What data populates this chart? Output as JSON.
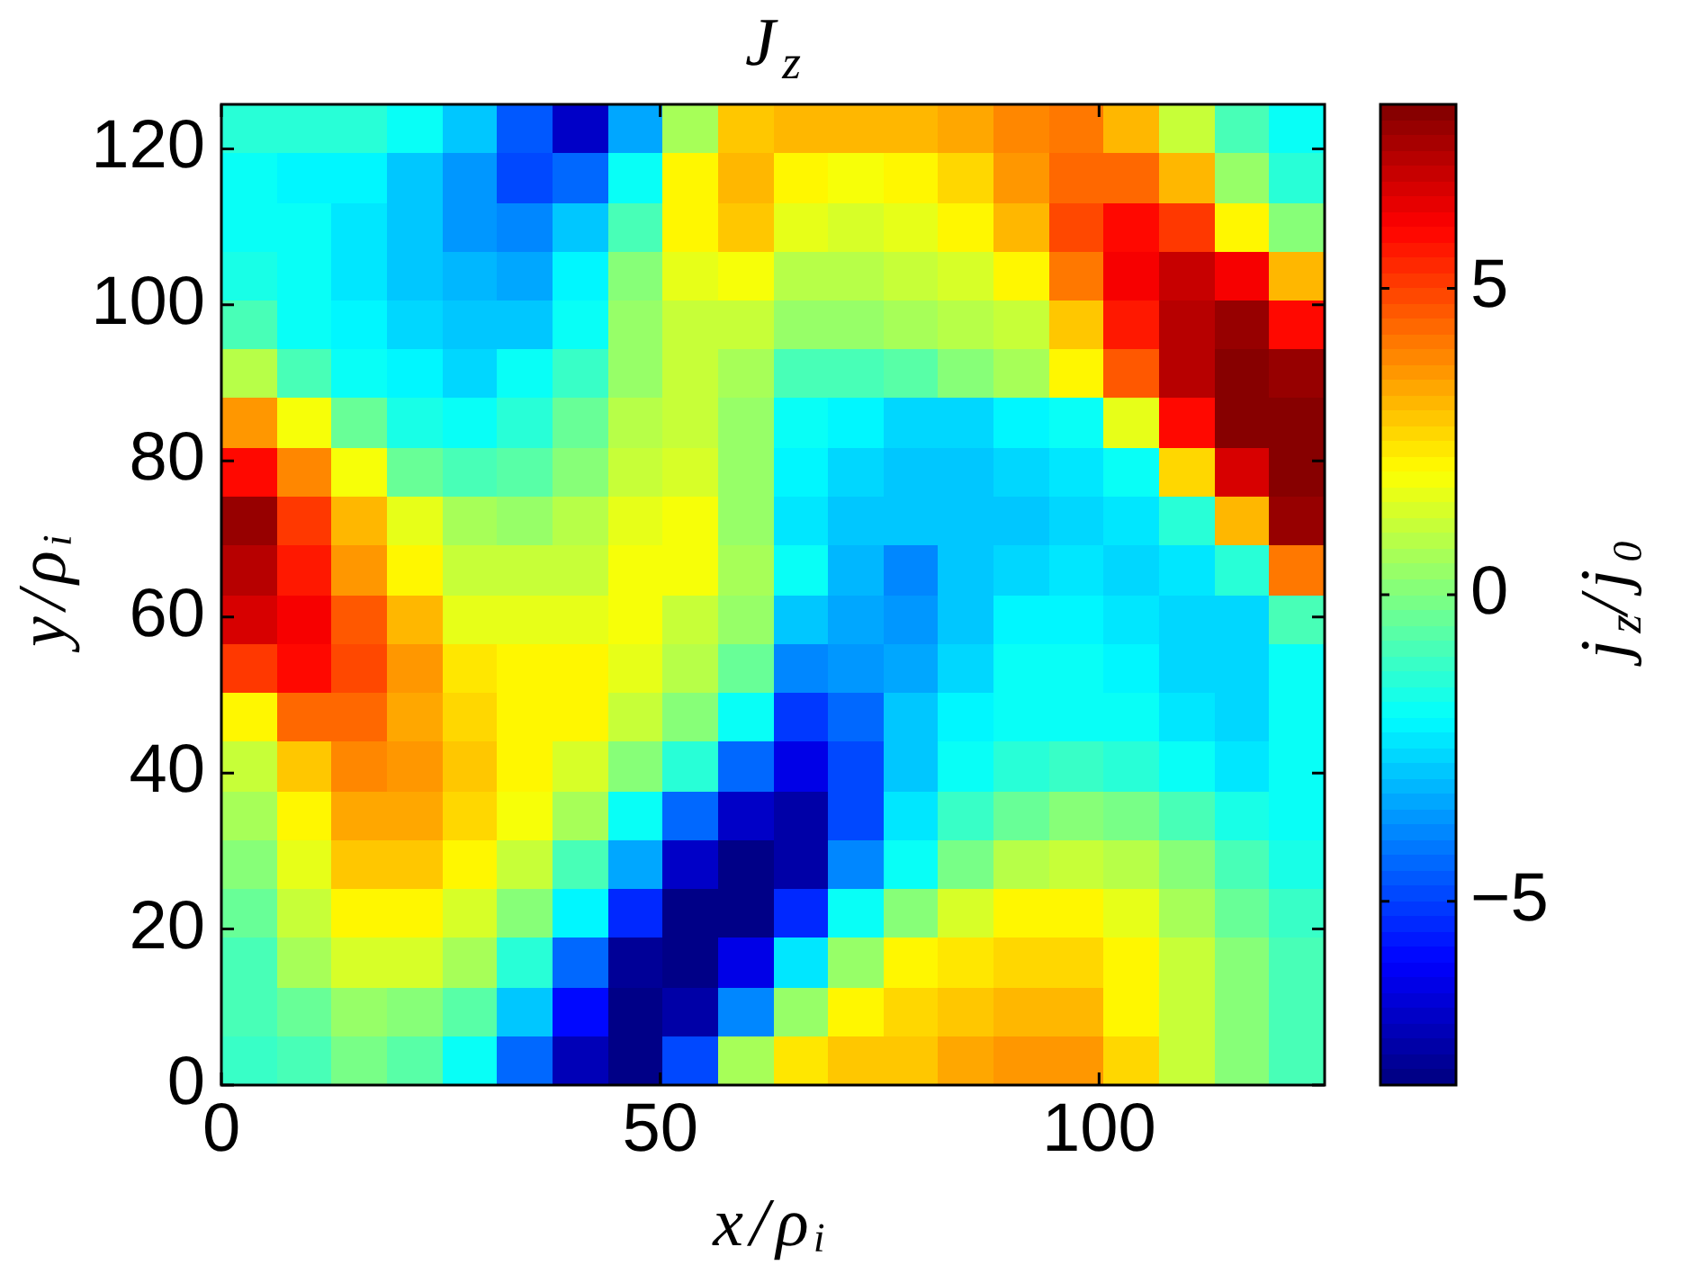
{
  "chart_data": {
    "type": "heatmap",
    "title": "J$_{z}$",
    "xlabel": "x/ρᵢ",
    "ylabel": "y/ρᵢ",
    "clabel": "j$_{z}$/j₀",
    "cells": [
      [
        -1.5,
        -1.4,
        -1.4,
        -2.0,
        -3.0,
        -4.6,
        -6.8,
        -3.5,
        0.5,
        2.8,
        3.0,
        3.0,
        3.0,
        3.3,
        3.8,
        4.0,
        3.0,
        1.0,
        -0.8,
        -1.8
      ],
      [
        -2.0,
        -2.1,
        -2.1,
        -2.8,
        -3.7,
        -4.8,
        -4.5,
        -2.0,
        2.0,
        3.0,
        2.0,
        1.8,
        2.0,
        2.6,
        3.5,
        4.3,
        4.3,
        3.0,
        0.3,
        -1.5
      ],
      [
        -1.8,
        -2.0,
        -2.3,
        -2.9,
        -3.6,
        -4.0,
        -3.0,
        -1.0,
        2.0,
        2.8,
        1.5,
        1.3,
        1.5,
        2.0,
        3.0,
        4.8,
        5.8,
        5.0,
        2.0,
        0.0
      ],
      [
        -1.7,
        -2.0,
        -2.3,
        -2.8,
        -3.2,
        -3.4,
        -2.2,
        0.0,
        1.7,
        1.8,
        0.8,
        0.8,
        1.0,
        1.3,
        2.2,
        4.0,
        6.0,
        6.8,
        6.0,
        3.2
      ],
      [
        -1.0,
        -1.8,
        -2.1,
        -2.6,
        -3.0,
        -2.8,
        -1.8,
        0.3,
        1.2,
        1.0,
        0.3,
        0.3,
        0.5,
        0.8,
        1.2,
        2.8,
        5.5,
        7.0,
        7.5,
        5.8
      ],
      [
        0.8,
        -1.0,
        -1.8,
        -2.2,
        -2.6,
        -2.0,
        -1.2,
        0.3,
        1.2,
        0.6,
        -1.0,
        -0.8,
        -0.6,
        0.0,
        0.5,
        2.0,
        4.5,
        7.2,
        7.9,
        7.5
      ],
      [
        3.5,
        1.8,
        -0.5,
        -1.6,
        -1.9,
        -1.3,
        -0.5,
        0.8,
        1.0,
        0.4,
        -2.0,
        -2.2,
        -2.6,
        -2.6,
        -2.2,
        -1.8,
        1.5,
        5.8,
        8.0,
        8.0
      ],
      [
        5.8,
        3.8,
        1.8,
        -0.3,
        -0.8,
        -0.6,
        0.0,
        1.0,
        1.3,
        0.4,
        -2.2,
        -2.7,
        -2.8,
        -2.8,
        -2.7,
        -2.5,
        -2.0,
        2.5,
        6.5,
        8.0
      ],
      [
        7.5,
        5.2,
        3.2,
        1.6,
        0.5,
        0.3,
        0.8,
        1.7,
        1.8,
        0.3,
        -2.4,
        -3.0,
        -3.0,
        -2.8,
        -2.8,
        -2.6,
        -2.4,
        -1.5,
        3.0,
        7.5
      ],
      [
        7.2,
        5.6,
        3.5,
        2.0,
        1.2,
        1.0,
        1.2,
        1.8,
        1.8,
        0.5,
        -2.0,
        -3.2,
        -3.8,
        -3.0,
        -2.6,
        -2.4,
        -2.6,
        -2.5,
        -1.5,
        4.0
      ],
      [
        6.5,
        6.0,
        4.6,
        3.0,
        1.7,
        1.5,
        1.5,
        1.8,
        1.2,
        0.3,
        -2.8,
        -3.3,
        -3.6,
        -2.8,
        -2.2,
        -2.2,
        -2.5,
        -2.7,
        -2.6,
        -1.0
      ],
      [
        5.0,
        5.8,
        4.8,
        3.6,
        2.3,
        2.1,
        2.0,
        1.6,
        0.8,
        -0.3,
        -4.0,
        -3.7,
        -3.3,
        -2.6,
        -2.0,
        -1.9,
        -2.1,
        -2.6,
        -2.7,
        -2.0
      ],
      [
        2.2,
        4.3,
        4.3,
        3.4,
        2.7,
        2.1,
        2.0,
        1.2,
        0.0,
        -2.0,
        -5.2,
        -4.3,
        -3.0,
        -2.2,
        -2.0,
        -1.8,
        -2.0,
        -2.4,
        -2.6,
        -2.0
      ],
      [
        1.2,
        2.8,
        3.8,
        3.6,
        2.8,
        2.0,
        1.3,
        0.2,
        -1.3,
        -4.5,
        -6.3,
        -5.0,
        -3.0,
        -2.0,
        -1.4,
        -1.2,
        -1.3,
        -1.9,
        -2.3,
        -2.0
      ],
      [
        0.6,
        2.0,
        3.4,
        3.4,
        2.5,
        1.9,
        0.5,
        -1.8,
        -4.5,
        -6.8,
        -7.3,
        -4.8,
        -2.5,
        -1.2,
        -0.3,
        0.0,
        -0.2,
        -1.0,
        -1.6,
        -1.8
      ],
      [
        0.2,
        1.7,
        2.9,
        2.8,
        2.0,
        1.0,
        -1.0,
        -3.5,
        -7.0,
        -7.8,
        -7.5,
        -4.0,
        -1.8,
        -0.2,
        0.8,
        1.0,
        0.8,
        0.0,
        -1.0,
        -1.6
      ],
      [
        -0.5,
        1.0,
        2.0,
        2.0,
        1.3,
        0.0,
        -2.2,
        -5.5,
        -7.8,
        -7.8,
        -5.5,
        -2.0,
        0.2,
        1.4,
        2.0,
        2.0,
        1.5,
        0.6,
        -0.5,
        -1.2
      ],
      [
        -0.8,
        0.6,
        1.4,
        1.3,
        0.5,
        -1.5,
        -4.5,
        -7.6,
        -7.8,
        -6.5,
        -2.5,
        0.3,
        2.0,
        2.3,
        2.6,
        2.6,
        2.0,
        1.0,
        0.0,
        -0.8
      ],
      [
        -1.0,
        -0.3,
        0.3,
        0.2,
        -0.6,
        -3.0,
        -6.0,
        -7.8,
        -7.5,
        -4.0,
        0.3,
        2.0,
        2.7,
        2.8,
        3.2,
        3.0,
        2.0,
        1.0,
        0.0,
        -0.8
      ],
      [
        -1.2,
        -0.8,
        -0.2,
        -0.6,
        -1.8,
        -4.5,
        -7.2,
        -7.8,
        -5.0,
        0.5,
        2.3,
        2.8,
        2.9,
        3.3,
        3.6,
        3.5,
        2.6,
        1.2,
        0.0,
        -0.8
      ]
    ],
    "xlim": [
      0,
      125.7
    ],
    "ylim": [
      0,
      125.7
    ],
    "xticks": [
      0,
      50,
      100
    ],
    "yticks": [
      0,
      20,
      40,
      60,
      80,
      100,
      120
    ],
    "clim": [
      -8,
      8
    ],
    "cticks": [
      {
        "value": -5,
        "label": "−5"
      },
      0,
      5
    ]
  }
}
